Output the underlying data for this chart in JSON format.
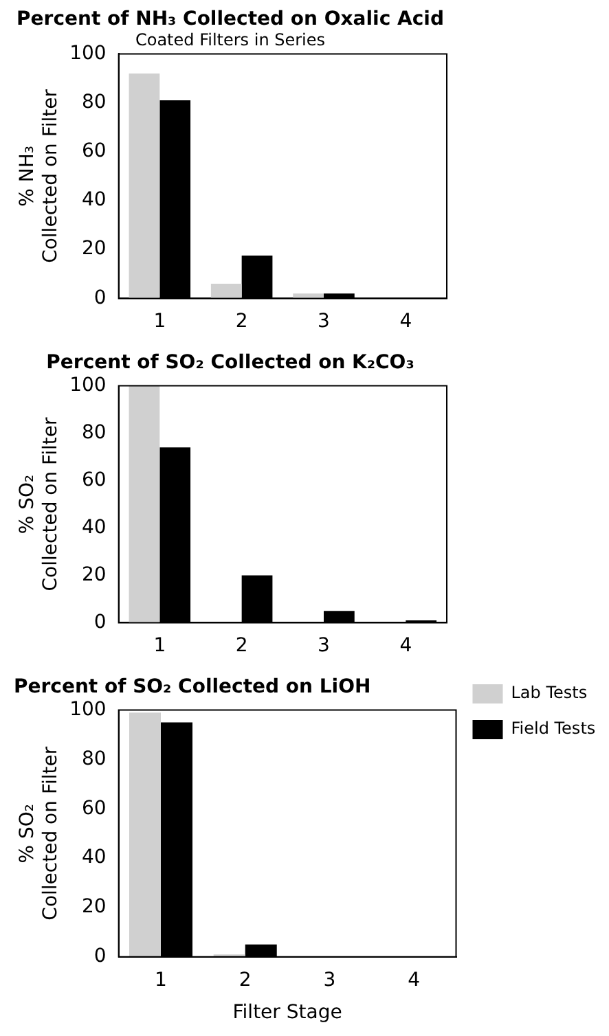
{
  "chart_data": [
    {
      "type": "bar",
      "title": "Percent of NH₃ Collected on Oxalic Acid",
      "subtitle": "Coated Filters in Series",
      "ylabel": "% NH₃\nCollected on Filter",
      "categories": [
        "1",
        "2",
        "3",
        "4"
      ],
      "series": [
        {
          "color": "#d0d0d0",
          "values": [
            92,
            6,
            2,
            0
          ]
        },
        {
          "color": "#000000",
          "values": [
            81,
            17.5,
            2,
            0
          ]
        }
      ],
      "ylim": [
        0,
        100
      ],
      "yticks": [
        0,
        20,
        40,
        60,
        80,
        100
      ],
      "grid": false,
      "legend": false
    },
    {
      "type": "bar",
      "title": "Percent of SO₂ Collected on K₂CO₃",
      "ylabel": "% SO₂\nCollected on Filter",
      "categories": [
        "1",
        "2",
        "3",
        "4"
      ],
      "series": [
        {
          "color": "#d0d0d0",
          "values": [
            100,
            0,
            0,
            0
          ]
        },
        {
          "color": "#000000",
          "values": [
            74,
            20,
            5,
            1
          ]
        }
      ],
      "ylim": [
        0,
        100
      ],
      "yticks": [
        0,
        20,
        40,
        60,
        80,
        100
      ],
      "grid": false,
      "legend": false
    },
    {
      "type": "bar",
      "title": "Percent of SO₂ Collected on LiOH",
      "ylabel": "% SO₂\nCollected on Filter",
      "xlabel": "Filter Stage",
      "categories": [
        "1",
        "2",
        "3",
        "4"
      ],
      "series": [
        {
          "name": "Lab Tests",
          "color": "#d0d0d0",
          "values": [
            99,
            1,
            0,
            0
          ]
        },
        {
          "name": "Field Tests",
          "color": "#000000",
          "values": [
            95,
            5,
            0,
            0
          ]
        }
      ],
      "ylim": [
        0,
        100
      ],
      "yticks": [
        0,
        20,
        40,
        60,
        80,
        100
      ],
      "grid": false,
      "legend": "right"
    }
  ]
}
